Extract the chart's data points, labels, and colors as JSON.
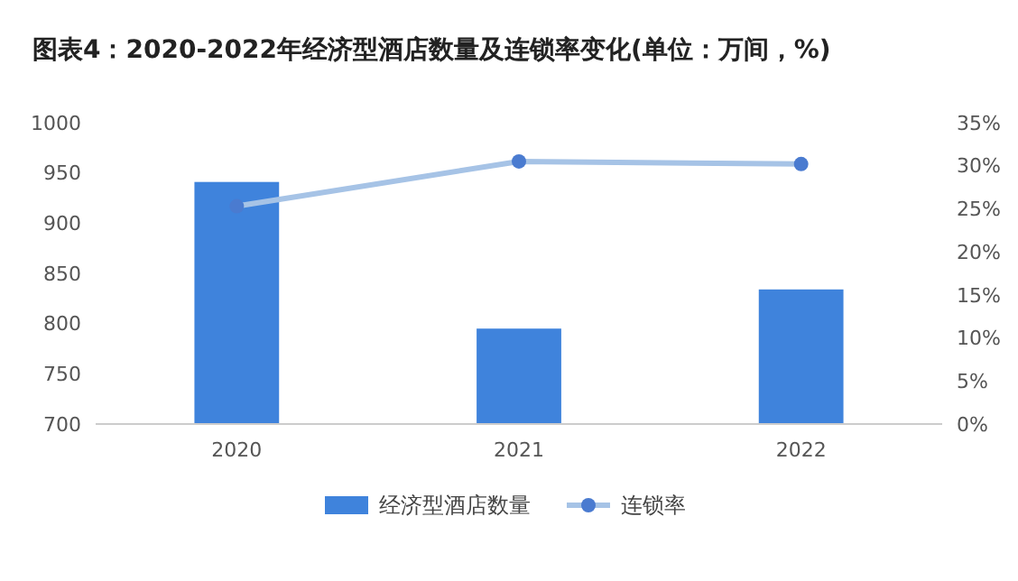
{
  "chart_data": {
    "type": "bar",
    "title": "图表4：2020-2022年经济型酒店数量及连锁率变化(单位：万间，%)",
    "categories": [
      "2020",
      "2021",
      "2022"
    ],
    "series": [
      {
        "name": "经济型酒店数量",
        "color": "#3f83dc",
        "values": [
          941,
          795,
          834
        ]
      },
      {
        "name": "连锁率",
        "type": "line",
        "axis": "y2",
        "color": "#a6c3e6",
        "values": [
          25.3,
          30.5,
          30.2
        ]
      }
    ],
    "ylim": [
      700,
      1000
    ],
    "yticks": [
      700,
      750,
      800,
      850,
      900,
      950,
      1000
    ],
    "y2lim": [
      0,
      35
    ],
    "y2ticks": [
      {
        "value": 0,
        "label": "0%"
      },
      {
        "value": 5,
        "label": "5%"
      },
      {
        "value": 10,
        "label": "10%"
      },
      {
        "value": 15,
        "label": "15%"
      },
      {
        "value": 20,
        "label": "20%"
      },
      {
        "value": 25,
        "label": "25%"
      },
      {
        "value": 30,
        "label": "30%"
      },
      {
        "value": 35,
        "label": "35%"
      }
    ],
    "legend": "bottom",
    "marker": "circle",
    "grid": false
  }
}
